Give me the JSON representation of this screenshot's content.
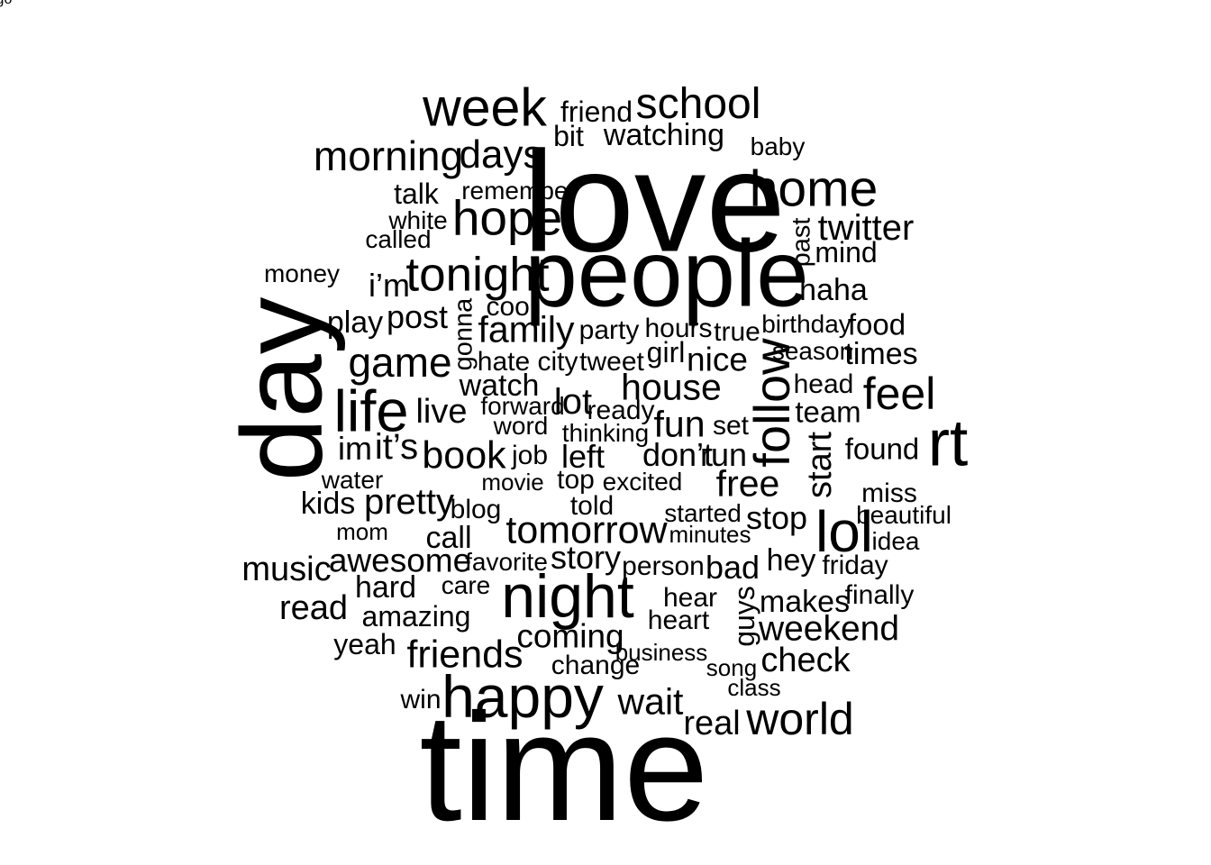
{
  "words": [
    {
      "text": "time",
      "size": 170
    },
    {
      "text": "love",
      "size": 159
    },
    {
      "text": "day",
      "size": 127,
      "vertical": true
    },
    {
      "text": "people",
      "size": 105
    },
    {
      "text": "rt",
      "size": 73
    },
    {
      "text": "night",
      "size": 68
    },
    {
      "text": "happy",
      "size": 66
    },
    {
      "text": "life",
      "size": 65
    },
    {
      "text": "lol",
      "size": 64
    },
    {
      "text": "week",
      "size": 59
    },
    {
      "text": "home",
      "size": 57
    },
    {
      "text": "follow",
      "size": 56,
      "vertical": true
    },
    {
      "text": "hope",
      "size": 55
    },
    {
      "text": "tonight",
      "size": 53
    },
    {
      "text": "feel",
      "size": 50
    },
    {
      "text": "world",
      "size": 50
    },
    {
      "text": "school",
      "size": 48
    },
    {
      "text": "morning",
      "size": 46
    },
    {
      "text": "game",
      "size": 46
    },
    {
      "text": "days",
      "size": 44
    },
    {
      "text": "friends",
      "size": 43
    },
    {
      "text": "tomorrow",
      "size": 43
    },
    {
      "text": "book",
      "size": 43
    },
    {
      "text": "house",
      "size": 41
    },
    {
      "text": "family",
      "size": 41
    },
    {
      "text": "wait",
      "size": 41
    },
    {
      "text": "fun",
      "size": 41
    },
    {
      "text": "free",
      "size": 41
    },
    {
      "text": "twitter",
      "size": 40
    },
    {
      "text": "lot",
      "size": 40
    },
    {
      "text": "pretty",
      "size": 40
    },
    {
      "text": "it’s",
      "size": 40
    },
    {
      "text": "weekend",
      "size": 39
    },
    {
      "text": "check",
      "size": 38
    },
    {
      "text": "live",
      "size": 38
    },
    {
      "text": "awesome",
      "size": 37
    },
    {
      "text": "music",
      "size": 38
    },
    {
      "text": "read",
      "size": 38
    },
    {
      "text": "real",
      "size": 38
    },
    {
      "text": "start",
      "size": 38,
      "vertical": true
    },
    {
      "text": "nice",
      "size": 37
    },
    {
      "text": "coming",
      "size": 37
    },
    {
      "text": "stop",
      "size": 36
    },
    {
      "text": "bad",
      "size": 36
    },
    {
      "text": "story",
      "size": 36
    },
    {
      "text": "i’m",
      "size": 36
    },
    {
      "text": "post",
      "size": 36
    },
    {
      "text": "im",
      "size": 36
    },
    {
      "text": "left",
      "size": 36
    },
    {
      "text": "don’t",
      "size": 36
    },
    {
      "text": "run",
      "size": 36
    },
    {
      "text": "watching",
      "size": 34
    },
    {
      "text": "hey",
      "size": 34
    },
    {
      "text": "makes",
      "size": 34
    },
    {
      "text": "times",
      "size": 34
    },
    {
      "text": "watch",
      "size": 34
    },
    {
      "text": "haha",
      "size": 34
    },
    {
      "text": "play",
      "size": 34
    },
    {
      "text": "call",
      "size": 34
    },
    {
      "text": "kids",
      "size": 34
    },
    {
      "text": "hard",
      "size": 34
    },
    {
      "text": "food",
      "size": 33
    },
    {
      "text": "team",
      "size": 33
    },
    {
      "text": "found",
      "size": 33
    },
    {
      "text": "friend",
      "size": 32
    },
    {
      "text": "bit",
      "size": 32
    },
    {
      "text": "mind",
      "size": 32
    },
    {
      "text": "girl",
      "size": 32
    },
    {
      "text": "amazing",
      "size": 32
    },
    {
      "text": "yeah",
      "size": 32
    },
    {
      "text": "talk",
      "size": 32
    },
    {
      "text": "guys",
      "size": 32,
      "vertical": true
    },
    {
      "text": "gonna",
      "size": 29,
      "vertical": true
    },
    {
      "text": "past",
      "size": 29,
      "vertical": true
    },
    {
      "text": "hours",
      "size": 30
    },
    {
      "text": "party",
      "size": 30
    },
    {
      "text": "true",
      "size": 30
    },
    {
      "text": "tweet",
      "size": 30
    },
    {
      "text": "city",
      "size": 30
    },
    {
      "text": "hate",
      "size": 30
    },
    {
      "text": "cool",
      "size": 30
    },
    {
      "text": "blog",
      "size": 30
    },
    {
      "text": "top",
      "size": 30
    },
    {
      "text": "job",
      "size": 30
    },
    {
      "text": "set",
      "size": 30
    },
    {
      "text": "head",
      "size": 30
    },
    {
      "text": "ready",
      "size": 30
    },
    {
      "text": "care",
      "size": 28
    },
    {
      "text": "person",
      "size": 30
    },
    {
      "text": "friday",
      "size": 30
    },
    {
      "text": "finally",
      "size": 30
    },
    {
      "text": "hear",
      "size": 30
    },
    {
      "text": "heart",
      "size": 30
    },
    {
      "text": "change",
      "size": 30
    },
    {
      "text": "win",
      "size": 30
    },
    {
      "text": "miss",
      "size": 30
    },
    {
      "text": "beautiful",
      "size": 28
    },
    {
      "text": "idea",
      "size": 28
    },
    {
      "text": "told",
      "size": 30
    },
    {
      "text": "started",
      "size": 28
    },
    {
      "text": "excited",
      "size": 28
    },
    {
      "text": "forward",
      "size": 28
    },
    {
      "text": "word",
      "size": 28
    },
    {
      "text": "thinking",
      "size": 28
    },
    {
      "text": "water",
      "size": 28
    },
    {
      "text": "remember",
      "size": 28
    },
    {
      "text": "white",
      "size": 28
    },
    {
      "text": "called",
      "size": 28
    },
    {
      "text": "money",
      "size": 28
    },
    {
      "text": "birthday",
      "size": 28
    },
    {
      "text": "season",
      "size": 28
    },
    {
      "text": "baby",
      "size": 28
    },
    {
      "text": "favorite",
      "size": 28
    },
    {
      "text": "movie",
      "size": 26
    },
    {
      "text": "mom",
      "size": 26
    },
    {
      "text": "business",
      "size": 26
    },
    {
      "text": "song",
      "size": 26
    },
    {
      "text": "class",
      "size": 26
    },
    {
      "text": "minutes",
      "size": 26
    },
    {
      "text": "ago",
      "size": 26
    }
  ]
}
